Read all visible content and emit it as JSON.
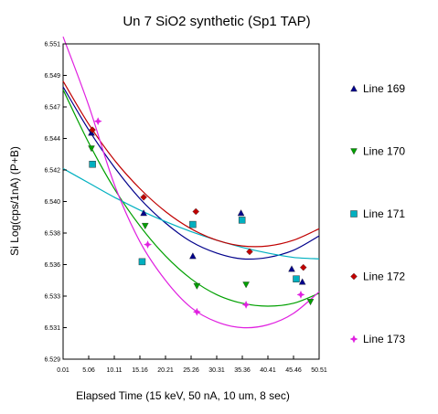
{
  "chart_data": {
    "type": "scatter",
    "title": "Un   7  SiO2 synthetic (Sp1 TAP)",
    "xlabel": "Elapsed Time (15 keV, 50 nA, 10 um, 8 sec)",
    "ylabel": "Si Log(cps/1nA) (P+B)",
    "xlim": [
      0.01,
      50.51
    ],
    "ylim": [
      6.529,
      6.551
    ],
    "x_ticks": [
      "0.01",
      "5.06",
      "10.11",
      "15.16",
      "20.21",
      "25.26",
      "30.31",
      "35.36",
      "40.41",
      "45.46",
      "50.51"
    ],
    "y_ticks": [
      "6.529",
      "6.531",
      "6.533",
      "6.536",
      "6.538",
      "6.540",
      "6.542",
      "6.544",
      "6.547",
      "6.549",
      "6.551"
    ],
    "grid": false,
    "legend_position": "right",
    "series": [
      {
        "name": "Line 169",
        "marker": "triangle-up",
        "color": "#00008b",
        "points": [
          [
            5.6,
            6.5448
          ],
          [
            15.9,
            6.5392
          ],
          [
            25.6,
            6.5362
          ],
          [
            35.1,
            6.5392
          ],
          [
            45.1,
            6.5353
          ],
          [
            47.2,
            6.5344
          ]
        ],
        "fit": [
          [
            0.01,
            6.548
          ],
          [
            5.06,
            6.545
          ],
          [
            10.11,
            6.5424
          ],
          [
            15.16,
            6.5402
          ],
          [
            20.21,
            6.5385
          ],
          [
            25.26,
            6.5372
          ],
          [
            30.31,
            6.5364
          ],
          [
            35.36,
            6.536
          ],
          [
            40.41,
            6.5361
          ],
          [
            45.46,
            6.5366
          ],
          [
            50.51,
            6.5376
          ]
        ]
      },
      {
        "name": "Line 170",
        "marker": "triangle-down",
        "color": "#00a000",
        "points": [
          [
            5.6,
            6.5437
          ],
          [
            16.2,
            6.5383
          ],
          [
            26.4,
            6.5341
          ],
          [
            36.1,
            6.5342
          ],
          [
            48.8,
            6.533
          ]
        ],
        "fit": [
          [
            0.01,
            6.5478
          ],
          [
            5.06,
            6.5441
          ],
          [
            10.11,
            6.5409
          ],
          [
            15.16,
            6.5383
          ],
          [
            20.21,
            6.5362
          ],
          [
            25.26,
            6.5346
          ],
          [
            30.31,
            6.5335
          ],
          [
            35.36,
            6.5329
          ],
          [
            40.41,
            6.5327
          ],
          [
            45.46,
            6.5329
          ],
          [
            50.51,
            6.5336
          ]
        ]
      },
      {
        "name": "Line 171",
        "marker": "square",
        "color": "#00b0c0",
        "points": [
          [
            5.8,
            6.5426
          ],
          [
            15.6,
            6.5358
          ],
          [
            25.6,
            6.5384
          ],
          [
            35.3,
            6.5387
          ],
          [
            46.0,
            6.5346
          ]
        ],
        "fit": [
          [
            0.01,
            6.5423
          ],
          [
            5.06,
            6.5413
          ],
          [
            10.11,
            6.5403
          ],
          [
            15.16,
            6.5394
          ],
          [
            20.21,
            6.5386
          ],
          [
            25.26,
            6.5379
          ],
          [
            30.31,
            6.5373
          ],
          [
            35.36,
            6.5368
          ],
          [
            40.41,
            6.5364
          ],
          [
            45.46,
            6.5361
          ],
          [
            50.51,
            6.536
          ]
        ]
      },
      {
        "name": "Line 172",
        "marker": "diamond",
        "color": "#c00000",
        "points": [
          [
            5.8,
            6.545
          ],
          [
            15.9,
            6.5403
          ],
          [
            26.2,
            6.5393
          ],
          [
            36.8,
            6.5365
          ],
          [
            47.4,
            6.5354
          ]
        ],
        "fit": [
          [
            0.01,
            6.5484
          ],
          [
            5.06,
            6.5454
          ],
          [
            10.11,
            6.5429
          ],
          [
            15.16,
            6.5409
          ],
          [
            20.21,
            6.5393
          ],
          [
            25.26,
            6.5381
          ],
          [
            30.31,
            6.5373
          ],
          [
            35.36,
            6.5369
          ],
          [
            40.41,
            6.5369
          ],
          [
            45.46,
            6.5373
          ],
          [
            50.51,
            6.5381
          ]
        ]
      },
      {
        "name": "Line 173",
        "marker": "star",
        "color": "#e020e0",
        "points": [
          [
            6.9,
            6.5456
          ],
          [
            16.7,
            6.537
          ],
          [
            26.4,
            6.5323
          ],
          [
            36.1,
            6.5328
          ],
          [
            46.9,
            6.5335
          ]
        ],
        "fit": [
          [
            0.01,
            6.5515
          ],
          [
            5.06,
            6.5467
          ],
          [
            10.11,
            6.5412
          ],
          [
            15.16,
            6.5372
          ],
          [
            20.21,
            6.5345
          ],
          [
            25.26,
            6.5326
          ],
          [
            30.31,
            6.5316
          ],
          [
            35.36,
            6.5312
          ],
          [
            40.41,
            6.5314
          ],
          [
            45.46,
            6.5322
          ],
          [
            50.51,
            6.5337
          ]
        ]
      }
    ]
  }
}
